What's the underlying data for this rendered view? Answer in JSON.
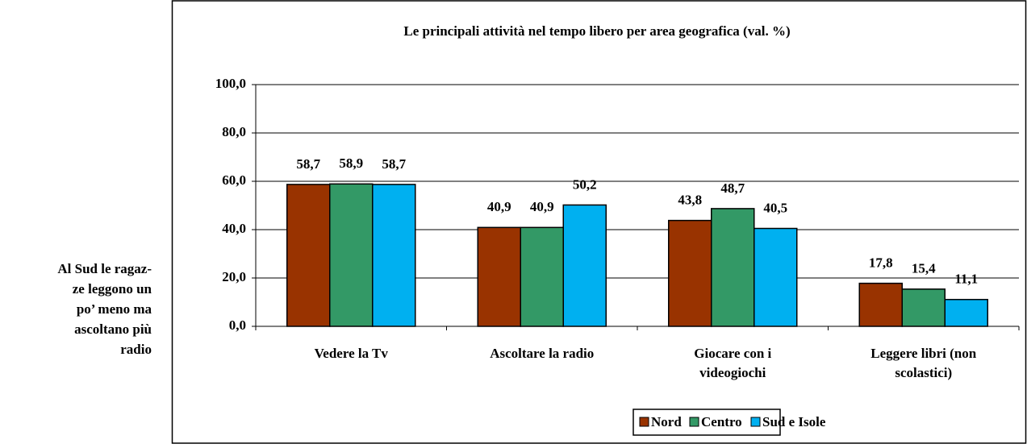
{
  "note": [
    "Al Sud le ragaz-",
    "ze leggono un",
    "po’ meno ma",
    "ascoltano più",
    "radio"
  ],
  "chart_data": {
    "type": "bar",
    "title": "Le principali attività nel tempo libero per area geografica (val. %)",
    "categories": [
      "Vedere la Tv",
      "Ascoltare la radio",
      "Giocare con i videogiochi",
      "Leggere libri (non scolastici)"
    ],
    "series": [
      {
        "name": "Nord",
        "color": "#993300",
        "values": [
          58.7,
          40.9,
          43.8,
          17.8
        ],
        "value_labels": [
          "58,7",
          "40,9",
          "43,8",
          "17,8"
        ]
      },
      {
        "name": "Centro",
        "color": "#339966",
        "values": [
          58.9,
          40.9,
          48.7,
          15.4
        ],
        "value_labels": [
          "58,9",
          "40,9",
          "48,7",
          "15,4"
        ]
      },
      {
        "name": "Sud e Isole",
        "color": "#00b0f0",
        "values": [
          58.7,
          50.2,
          40.5,
          11.1
        ],
        "value_labels": [
          "58,7",
          "50,2",
          "40,5",
          "11,1"
        ]
      }
    ],
    "ylim": [
      0,
      100
    ],
    "yticks": [
      {
        "value": 0,
        "label": "0,0"
      },
      {
        "value": 20,
        "label": "20,0"
      },
      {
        "value": 40,
        "label": "40,0"
      },
      {
        "value": 60,
        "label": "60,0"
      },
      {
        "value": 80,
        "label": "80,0"
      },
      {
        "value": 100,
        "label": "100,0"
      }
    ],
    "grid": true,
    "legend": "bottom"
  }
}
